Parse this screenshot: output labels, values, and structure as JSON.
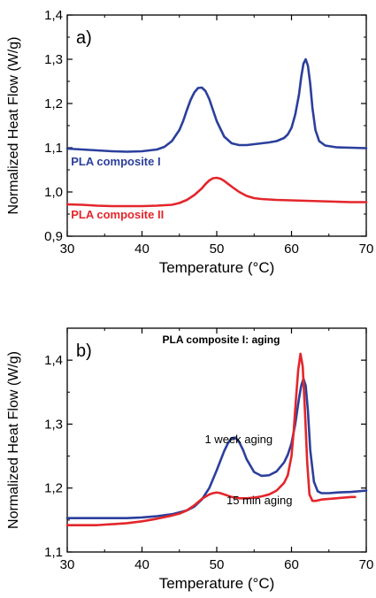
{
  "chart_data": [
    {
      "panel_label": "a)",
      "type": "line",
      "xlabel": "Temperature (°C)",
      "ylabel": "Normalized Heat Flow (W/g)",
      "xlim": [
        30,
        70
      ],
      "ylim": [
        0.9,
        1.4
      ],
      "xticks": [
        30,
        40,
        50,
        60,
        70
      ],
      "xtick_labels": [
        "30",
        "40",
        "50",
        "60",
        "70"
      ],
      "yticks": [
        0.9,
        1.0,
        1.1,
        1.2,
        1.3,
        1.4
      ],
      "ytick_labels": [
        "0,9",
        "1,0",
        "1,1",
        "1,2",
        "1,3",
        "1,4"
      ],
      "grid": false,
      "annotations": [],
      "series": [
        {
          "name": "PLA composite I",
          "color": "#2b3f9c",
          "label_pos": [
            30.5,
            1.06
          ],
          "x": [
            30,
            32,
            34,
            36,
            38,
            40,
            42,
            43,
            44,
            45,
            45.5,
            46,
            46.5,
            47,
            47.5,
            48,
            48.5,
            49,
            49.5,
            50,
            51,
            52,
            53,
            54,
            55,
            56,
            57,
            58,
            59,
            59.5,
            60,
            60.5,
            61,
            61.3,
            61.6,
            61.9,
            62.2,
            62.5,
            62.8,
            63.2,
            63.7,
            64.5,
            66,
            68,
            70
          ],
          "y": [
            1.098,
            1.096,
            1.094,
            1.092,
            1.091,
            1.092,
            1.096,
            1.102,
            1.115,
            1.14,
            1.16,
            1.185,
            1.208,
            1.225,
            1.235,
            1.236,
            1.228,
            1.21,
            1.185,
            1.16,
            1.125,
            1.11,
            1.106,
            1.106,
            1.108,
            1.11,
            1.112,
            1.115,
            1.122,
            1.13,
            1.145,
            1.175,
            1.22,
            1.26,
            1.29,
            1.3,
            1.285,
            1.245,
            1.19,
            1.14,
            1.115,
            1.105,
            1.101,
            1.1,
            1.099
          ]
        },
        {
          "name": "PLA composite II",
          "color": "#e3262b",
          "label_pos": [
            30.5,
            0.94
          ],
          "x": [
            30,
            32,
            34,
            36,
            38,
            40,
            42,
            44,
            45,
            46,
            47,
            48,
            48.5,
            49,
            49.5,
            50,
            50.5,
            51,
            52,
            53,
            54,
            55,
            56,
            58,
            60,
            62,
            64,
            66,
            68,
            70
          ],
          "y": [
            0.972,
            0.971,
            0.969,
            0.968,
            0.968,
            0.968,
            0.969,
            0.971,
            0.975,
            0.982,
            0.993,
            1.008,
            1.018,
            1.026,
            1.031,
            1.032,
            1.03,
            1.025,
            1.012,
            1.0,
            0.991,
            0.986,
            0.984,
            0.982,
            0.981,
            0.98,
            0.979,
            0.978,
            0.977,
            0.977
          ]
        }
      ]
    },
    {
      "panel_label": "b)",
      "type": "line",
      "title": "PLA composite I: aging",
      "xlabel": "Temperature (°C)",
      "ylabel": "Normalized Heat Flow (W/g)",
      "xlim": [
        30,
        70
      ],
      "ylim": [
        1.1,
        1.45
      ],
      "xticks": [
        30,
        40,
        50,
        60,
        70
      ],
      "xtick_labels": [
        "30",
        "40",
        "50",
        "60",
        "70"
      ],
      "yticks": [
        1.1,
        1.2,
        1.3,
        1.4
      ],
      "ytick_labels": [
        "1,1",
        "1,2",
        "1,3",
        "1,4"
      ],
      "grid": false,
      "series": [
        {
          "name": "1 week aging",
          "color": "#2b3f9c",
          "label_pos": [
            48.4,
            1.27
          ],
          "x": [
            30,
            34,
            38,
            40,
            42,
            44,
            46,
            47,
            48,
            49,
            50,
            50.5,
            51,
            51.5,
            52,
            52.5,
            53,
            53.5,
            54,
            55,
            56,
            57,
            58,
            59,
            59.5,
            60,
            60.5,
            61,
            61.3,
            61.6,
            61.9,
            62.2,
            62.5,
            63,
            63.5,
            64,
            65,
            66,
            68,
            70
          ],
          "y": [
            1.153,
            1.153,
            1.153,
            1.154,
            1.156,
            1.159,
            1.165,
            1.171,
            1.182,
            1.2,
            1.228,
            1.243,
            1.258,
            1.27,
            1.278,
            1.279,
            1.272,
            1.26,
            1.245,
            1.225,
            1.219,
            1.22,
            1.226,
            1.24,
            1.252,
            1.27,
            1.3,
            1.34,
            1.36,
            1.371,
            1.36,
            1.32,
            1.26,
            1.21,
            1.195,
            1.192,
            1.192,
            1.193,
            1.194,
            1.196
          ]
        },
        {
          "name": "15 min aging",
          "color": "#e3262b",
          "label_pos": [
            51.3,
            1.175
          ],
          "x": [
            30,
            34,
            38,
            40,
            42,
            44,
            45,
            46,
            47,
            48,
            49,
            49.5,
            50,
            50.5,
            51,
            52,
            53,
            54,
            55,
            56,
            57,
            58,
            59,
            59.5,
            60,
            60.3,
            60.6,
            60.9,
            61.2,
            61.5,
            61.8,
            62.1,
            62.4,
            62.8,
            63.3,
            64,
            66,
            68,
            68.5
          ],
          "y": [
            1.142,
            1.142,
            1.145,
            1.148,
            1.152,
            1.157,
            1.16,
            1.165,
            1.173,
            1.183,
            1.19,
            1.192,
            1.193,
            1.192,
            1.19,
            1.186,
            1.184,
            1.184,
            1.185,
            1.187,
            1.19,
            1.196,
            1.208,
            1.22,
            1.25,
            1.29,
            1.34,
            1.385,
            1.41,
            1.39,
            1.32,
            1.24,
            1.19,
            1.18,
            1.18,
            1.182,
            1.184,
            1.186,
            1.186
          ]
        }
      ]
    }
  ]
}
